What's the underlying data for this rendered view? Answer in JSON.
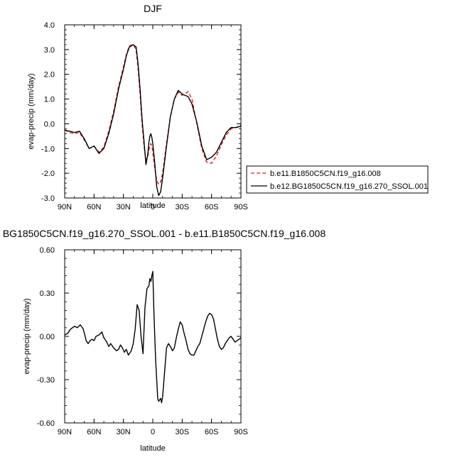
{
  "chart_data": [
    {
      "type": "line",
      "title": "DJF",
      "xlabel": "latitude",
      "ylabel": "evap-precip (mm/day)",
      "xlim": [
        90,
        -90
      ],
      "ylim": [
        -3.0,
        4.0
      ],
      "yticks": [
        -3.0,
        -2.0,
        -1.0,
        0.0,
        1.0,
        2.0,
        3.0,
        4.0
      ],
      "ytick_labels": [
        "-3.0",
        "-2.0",
        "-1.0",
        "0.0",
        "1.0",
        "2.0",
        "3.0",
        "4.0"
      ],
      "xticks": [
        90,
        60,
        30,
        0,
        -30,
        -60,
        -90
      ],
      "xtick_labels": [
        "90N",
        "60N",
        "30N",
        "0",
        "30S",
        "60S",
        "90S"
      ],
      "legend_position": "right",
      "series": [
        {
          "name": "b.e11.B1850C5CN.f19_g16.008",
          "color": "#e41a1c",
          "dash": "dashed",
          "x": [
            90,
            85,
            80,
            75,
            70,
            65,
            60,
            55,
            50,
            45,
            40,
            35,
            30,
            27,
            24,
            20,
            17,
            15,
            13,
            11,
            9,
            7,
            5,
            4,
            3,
            2,
            1,
            0,
            -2,
            -4,
            -6,
            -8,
            -10,
            -14,
            -18,
            -22,
            -26,
            -30,
            -33,
            -36,
            -40,
            -45,
            -50,
            -55,
            -60,
            -65,
            -70,
            -75,
            -80,
            -85,
            -90
          ],
          "y": [
            -0.25,
            -0.35,
            -0.4,
            -0.35,
            -0.65,
            -1.0,
            -0.9,
            -1.15,
            -0.95,
            -0.3,
            0.5,
            1.5,
            2.3,
            2.8,
            3.15,
            3.2,
            3.0,
            2.2,
            1.2,
            0.0,
            -0.9,
            -1.45,
            -1.3,
            -1.05,
            -0.9,
            -0.8,
            -0.9,
            -1.15,
            -1.8,
            -2.3,
            -2.45,
            -2.35,
            -2.0,
            -0.8,
            0.3,
            1.0,
            1.28,
            1.15,
            1.22,
            1.3,
            1.0,
            0.0,
            -1.0,
            -1.55,
            -1.6,
            -1.3,
            -0.85,
            -0.45,
            -0.2,
            -0.15,
            -0.05
          ]
        },
        {
          "name": "b.e12.BG1850C5CN.f19_g16.270_SSOL.001",
          "color": "#000000",
          "dash": "solid",
          "x": [
            90,
            85,
            80,
            75,
            70,
            65,
            60,
            55,
            50,
            45,
            40,
            35,
            30,
            27,
            24,
            20,
            17,
            15,
            13,
            11,
            9,
            7,
            5,
            4,
            3,
            2,
            1,
            0,
            -2,
            -4,
            -6,
            -8,
            -10,
            -14,
            -18,
            -22,
            -26,
            -30,
            -33,
            -36,
            -40,
            -45,
            -50,
            -55,
            -60,
            -65,
            -70,
            -75,
            -80,
            -85,
            -90
          ],
          "y": [
            -0.25,
            -0.3,
            -0.35,
            -0.3,
            -0.6,
            -1.0,
            -0.9,
            -1.2,
            -1.0,
            -0.4,
            0.4,
            1.4,
            2.2,
            2.75,
            3.1,
            3.2,
            3.1,
            2.4,
            1.4,
            0.2,
            -0.7,
            -1.65,
            -1.2,
            -0.75,
            -0.5,
            -0.4,
            -0.55,
            -0.8,
            -1.6,
            -2.55,
            -2.9,
            -2.75,
            -2.2,
            -0.9,
            0.3,
            1.0,
            1.35,
            1.2,
            1.15,
            1.1,
            0.8,
            0.05,
            -0.9,
            -1.45,
            -1.35,
            -1.15,
            -0.75,
            -0.35,
            -0.15,
            -0.15,
            -0.1
          ]
        }
      ]
    },
    {
      "type": "line",
      "title": "BG1850C5CN.f19_g16.270_SSOL.001 - b.e11.B1850C5CN.f19_g16.008",
      "xlabel": "latitude",
      "ylabel": "evap-precip (mm/day)",
      "xlim": [
        90,
        -90
      ],
      "ylim": [
        -0.6,
        0.6
      ],
      "yticks": [
        -0.6,
        -0.3,
        0.0,
        0.3,
        0.6
      ],
      "ytick_labels": [
        "-0.60",
        "-0.30",
        "0.00",
        "0.30",
        "0.60"
      ],
      "xticks": [
        90,
        60,
        30,
        0,
        -30,
        -60,
        -90
      ],
      "xtick_labels": [
        "90N",
        "60N",
        "30N",
        "0",
        "30S",
        "60S",
        "90S"
      ],
      "series": [
        {
          "color": "#000000",
          "dash": "solid",
          "x": [
            90,
            87,
            84,
            80,
            77,
            74,
            71,
            68,
            66,
            64,
            62,
            60,
            58,
            55,
            52,
            50,
            47,
            45,
            43,
            40,
            37,
            35,
            33,
            31,
            29,
            27,
            25,
            22,
            20,
            18,
            16,
            14,
            12,
            10,
            8,
            6,
            4,
            3,
            2,
            1,
            0,
            -1,
            -2,
            -3,
            -4,
            -5,
            -6,
            -7,
            -8,
            -9,
            -10,
            -12,
            -14,
            -16,
            -18,
            -20,
            -22,
            -24,
            -26,
            -28,
            -30,
            -32,
            -34,
            -36,
            -38,
            -40,
            -42,
            -44,
            -46,
            -48,
            -50,
            -52,
            -54,
            -56,
            -58,
            -60,
            -62,
            -64,
            -66,
            -68,
            -70,
            -72,
            -74,
            -76,
            -78,
            -80,
            -82,
            -84,
            -86,
            -88,
            -90
          ],
          "y": [
            0.01,
            0.02,
            0.05,
            0.07,
            0.06,
            0.08,
            0.05,
            -0.03,
            -0.05,
            -0.03,
            -0.02,
            -0.03,
            0.0,
            0.01,
            0.03,
            -0.01,
            -0.04,
            -0.07,
            -0.05,
            -0.08,
            -0.1,
            -0.09,
            -0.06,
            -0.08,
            -0.11,
            -0.09,
            -0.13,
            -0.1,
            -0.05,
            0.05,
            0.22,
            0.18,
            0.0,
            -0.12,
            0.2,
            0.33,
            0.35,
            0.4,
            0.38,
            0.42,
            0.45,
            0.2,
            0.0,
            -0.18,
            -0.3,
            -0.43,
            -0.45,
            -0.44,
            -0.43,
            -0.46,
            -0.42,
            -0.25,
            -0.08,
            -0.05,
            -0.07,
            -0.1,
            -0.08,
            -0.01,
            0.05,
            0.1,
            0.08,
            0.02,
            -0.03,
            -0.09,
            -0.12,
            -0.13,
            -0.13,
            -0.1,
            -0.07,
            -0.05,
            0.0,
            0.05,
            0.1,
            0.14,
            0.16,
            0.15,
            0.12,
            0.05,
            -0.02,
            -0.07,
            -0.09,
            -0.08,
            -0.05,
            -0.03,
            -0.01,
            0.0,
            -0.02,
            -0.04,
            -0.03,
            -0.02,
            -0.01
          ]
        }
      ]
    }
  ]
}
